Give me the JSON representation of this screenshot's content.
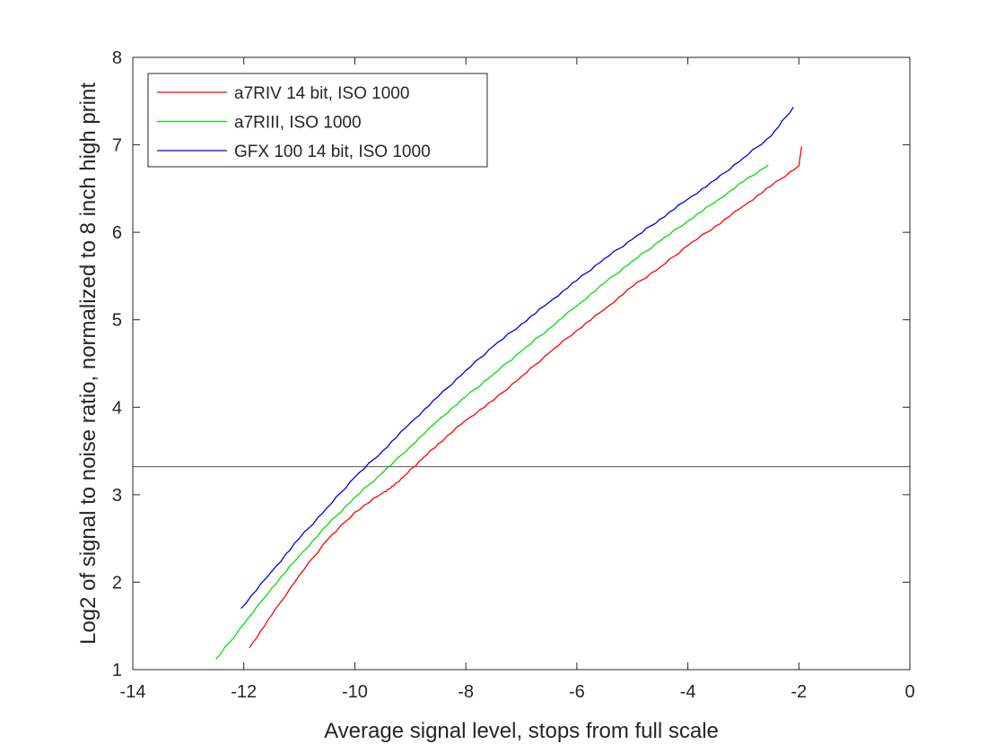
{
  "chart_data": {
    "type": "line",
    "title": "",
    "xlabel": "Average signal level, stops from full scale",
    "ylabel": "Log2 of signal to noise ratio, normalized to 8 inch high print",
    "xlim": [
      -14,
      0
    ],
    "ylim": [
      1,
      8
    ],
    "xticks": [
      -14,
      -12,
      -10,
      -8,
      -6,
      -4,
      -2,
      0
    ],
    "yticks": [
      1,
      2,
      3,
      4,
      5,
      6,
      7,
      8
    ],
    "grid": false,
    "legend_position": "top-left",
    "reference_line": {
      "y": 3.32,
      "color": "#555555"
    },
    "series": [
      {
        "name": "a7RIV 14 bit, ISO 1000",
        "color": "#ff0000",
        "x": [
          -11.9,
          -11.5,
          -11.0,
          -10.5,
          -10.0,
          -9.5,
          -9.3,
          -9.1,
          -8.8,
          -8.5,
          -8.0,
          -7.5,
          -7.0,
          -6.5,
          -6.0,
          -5.5,
          -5.0,
          -4.5,
          -4.0,
          -3.5,
          -3.0,
          -2.5,
          -2.0,
          -1.95
        ],
        "y": [
          1.25,
          1.62,
          2.08,
          2.48,
          2.8,
          3.02,
          3.1,
          3.22,
          3.4,
          3.58,
          3.85,
          4.08,
          4.35,
          4.62,
          4.88,
          5.12,
          5.38,
          5.6,
          5.85,
          6.07,
          6.3,
          6.53,
          6.76,
          6.98
        ]
      },
      {
        "name": "a7RIII, ISO 1000",
        "color": "#00e000",
        "x": [
          -12.5,
          -12.0,
          -11.5,
          -11.0,
          -10.5,
          -10.0,
          -9.5,
          -9.0,
          -8.5,
          -8.0,
          -7.5,
          -7.0,
          -6.5,
          -6.0,
          -5.5,
          -5.0,
          -4.5,
          -4.0,
          -3.5,
          -3.0,
          -2.55
        ],
        "y": [
          1.12,
          1.52,
          1.93,
          2.3,
          2.65,
          2.97,
          3.25,
          3.55,
          3.85,
          4.12,
          4.38,
          4.64,
          4.9,
          5.16,
          5.42,
          5.67,
          5.9,
          6.13,
          6.35,
          6.58,
          6.77
        ]
      },
      {
        "name": "GFX 100 14 bit, ISO 1000",
        "color": "#0000e0",
        "x": [
          -12.05,
          -11.5,
          -11.0,
          -10.5,
          -10.0,
          -9.5,
          -9.0,
          -8.5,
          -8.0,
          -7.5,
          -7.0,
          -6.5,
          -6.0,
          -5.5,
          -5.0,
          -4.5,
          -4.0,
          -3.5,
          -3.0,
          -2.5,
          -2.1
        ],
        "y": [
          1.7,
          2.12,
          2.5,
          2.85,
          3.2,
          3.5,
          3.82,
          4.12,
          4.42,
          4.7,
          4.95,
          5.2,
          5.45,
          5.7,
          5.92,
          6.15,
          6.38,
          6.6,
          6.85,
          7.1,
          7.43
        ]
      }
    ]
  }
}
